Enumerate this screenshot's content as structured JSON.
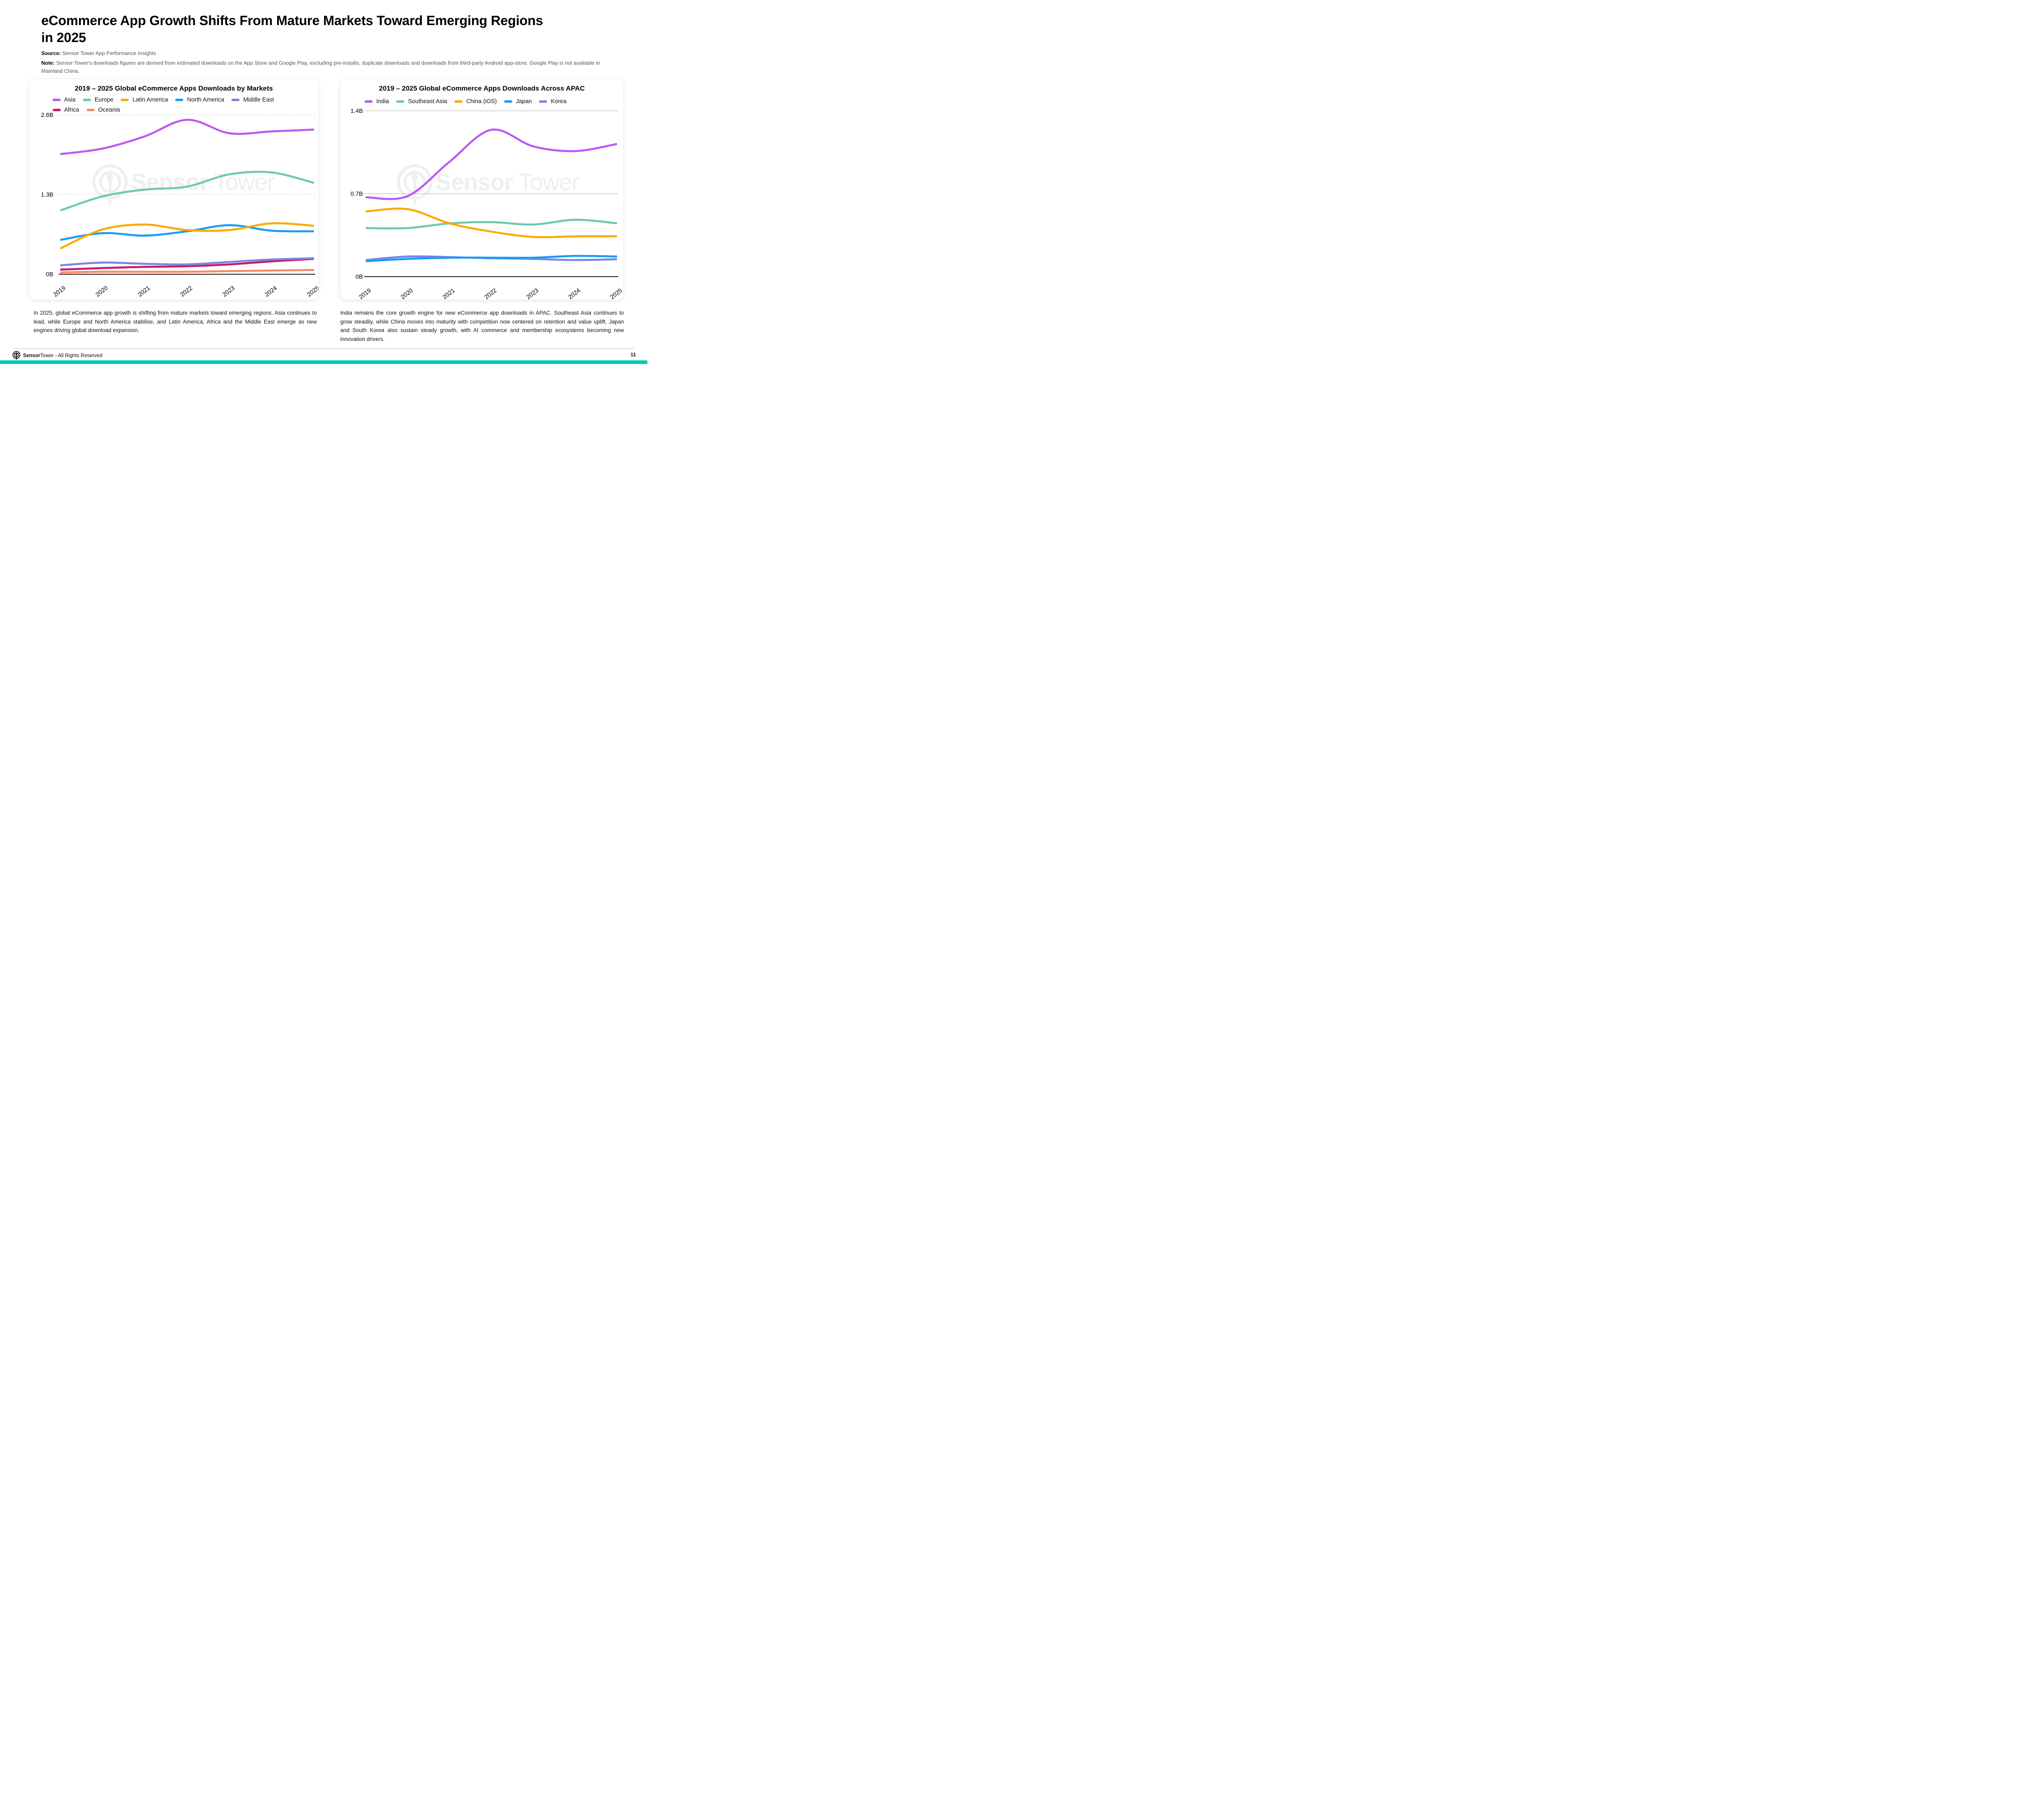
{
  "slide": {
    "title_lines": [
      "eCommerce App Growth Shifts From Mature Markets Toward Emerging Regions",
      "in 2025"
    ],
    "source_label": "Source:",
    "source_value": "Sensor Tower App Performance Insights",
    "note_label": "Note:",
    "note_value": "Sensor Tower's downloads figures are derived from estimated downloads on the App Store and Google Play, excluding pre-installs, duplicate downloads and downloads from third-party Android app-store. Google Play is not available in Mainland China.",
    "watermark": {
      "bold": "Sensor",
      "light": "Tower"
    },
    "footer": {
      "brand_bold": "Sensor",
      "brand_light": "Tower",
      "rights": " - All Rights Reserved",
      "page_number": "11"
    },
    "accent_color": "#00ccb2"
  },
  "chart_data": [
    {
      "type": "line",
      "title": "2019 – 2025 Global eCommerce Apps Downloads by Markets",
      "x": [
        "2019",
        "2020",
        "2021",
        "2022",
        "2023",
        "2024",
        "2025"
      ],
      "ylim": [
        0,
        2.6
      ],
      "yticks": [
        {
          "value": 2.6,
          "label": "2.6B"
        },
        {
          "value": 1.3,
          "label": "1.3B"
        },
        {
          "value": 0,
          "label": "0B"
        }
      ],
      "grid_style": "dotted",
      "legend_position": "top",
      "series": [
        {
          "name": "Asia",
          "color": "#b95af2",
          "values": [
            1.96,
            2.05,
            2.25,
            2.52,
            2.3,
            2.33,
            2.36
          ]
        },
        {
          "name": "Europe",
          "color": "#6ec8b2",
          "values": [
            1.04,
            1.27,
            1.38,
            1.43,
            1.63,
            1.66,
            1.49
          ]
        },
        {
          "name": "Latin America",
          "color": "#fba900",
          "values": [
            0.42,
            0.73,
            0.81,
            0.72,
            0.72,
            0.83,
            0.79
          ]
        },
        {
          "name": "North America",
          "color": "#169ef5",
          "values": [
            0.56,
            0.67,
            0.63,
            0.7,
            0.8,
            0.71,
            0.7
          ]
        },
        {
          "name": "Middle East",
          "color": "#7a86e5",
          "values": [
            0.145,
            0.19,
            0.17,
            0.16,
            0.2,
            0.24,
            0.26
          ]
        },
        {
          "name": "Africa",
          "color": "#c51e65",
          "values": [
            0.075,
            0.1,
            0.12,
            0.13,
            0.16,
            0.21,
            0.25
          ]
        },
        {
          "name": "Oceania",
          "color": "#fa8a6a",
          "values": [
            0.03,
            0.04,
            0.04,
            0.04,
            0.05,
            0.06,
            0.07
          ]
        }
      ],
      "caption": "In 2025, global eCommerce app growth is shifting from mature markets toward emerging regions. Asia continues to lead, while Europe and North America stabilise, and Latin America, Africa and the Middle East emerge as new engines driving global download expansion."
    },
    {
      "type": "line",
      "title": "2019 – 2025 Global eCommerce Apps Downloads Across APAC",
      "x": [
        "2019",
        "2020",
        "2021",
        "2022",
        "2023",
        "2024",
        "2025"
      ],
      "ylim": [
        0,
        1.4
      ],
      "yticks": [
        {
          "value": 1.4,
          "label": "1.4B"
        },
        {
          "value": 0.7,
          "label": "0.7B"
        },
        {
          "value": 0,
          "label": "0B"
        }
      ],
      "grid_style": "solid",
      "legend_position": "top",
      "series": [
        {
          "name": "India",
          "color": "#b95af2",
          "values": [
            0.67,
            0.68,
            0.97,
            1.24,
            1.1,
            1.06,
            1.12
          ]
        },
        {
          "name": "Southeast Asia",
          "color": "#6ec8b2",
          "values": [
            0.41,
            0.41,
            0.45,
            0.46,
            0.44,
            0.48,
            0.45
          ]
        },
        {
          "name": "China (iOS)",
          "color": "#fba900",
          "values": [
            0.55,
            0.57,
            0.45,
            0.38,
            0.335,
            0.34,
            0.34
          ]
        },
        {
          "name": "Japan",
          "color": "#169ef5",
          "values": [
            0.13,
            0.15,
            0.16,
            0.16,
            0.16,
            0.175,
            0.17
          ]
        },
        {
          "name": "Korea",
          "color": "#7a86e5",
          "values": [
            0.14,
            0.17,
            0.165,
            0.155,
            0.15,
            0.14,
            0.147
          ]
        }
      ],
      "caption": "India remains the core growth engine for new eCommerce app downloads in APAC. Southeast Asia continues to grow steadily, while China moves into maturity with competition now centered on retention and value uplift. Japan and South Korea also sustain steady growth, with AI commerce and membership ecosystems becoming new innovation drivers."
    }
  ]
}
